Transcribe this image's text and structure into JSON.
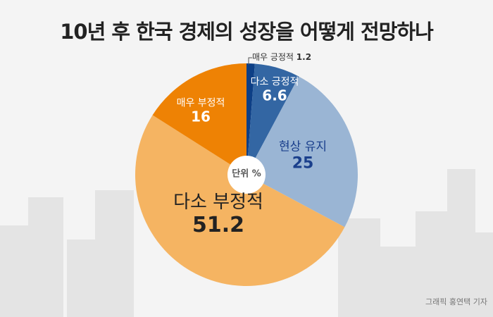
{
  "title": "10년 후 한국 경제의 성장을 어떻게 전망하나",
  "credit": "그래픽 홍연택 기자",
  "chart_data": {
    "type": "pie",
    "title": "10년 후 한국 경제의 성장을 어떻게 전망하나",
    "unit_label": "단위 %",
    "slices": [
      {
        "label": "매우 긍정적",
        "value": 1.2,
        "color": "#0d3f86"
      },
      {
        "label": "다소 긍정적",
        "value": 6.6,
        "color": "#3366a3"
      },
      {
        "label": "현상 유지",
        "value": 25,
        "color": "#9ab5d4"
      },
      {
        "label": "다소 부정적",
        "value": 51.2,
        "color": "#f5b462"
      },
      {
        "label": "매우 부정적",
        "value": 16,
        "color": "#ee8204"
      }
    ]
  }
}
